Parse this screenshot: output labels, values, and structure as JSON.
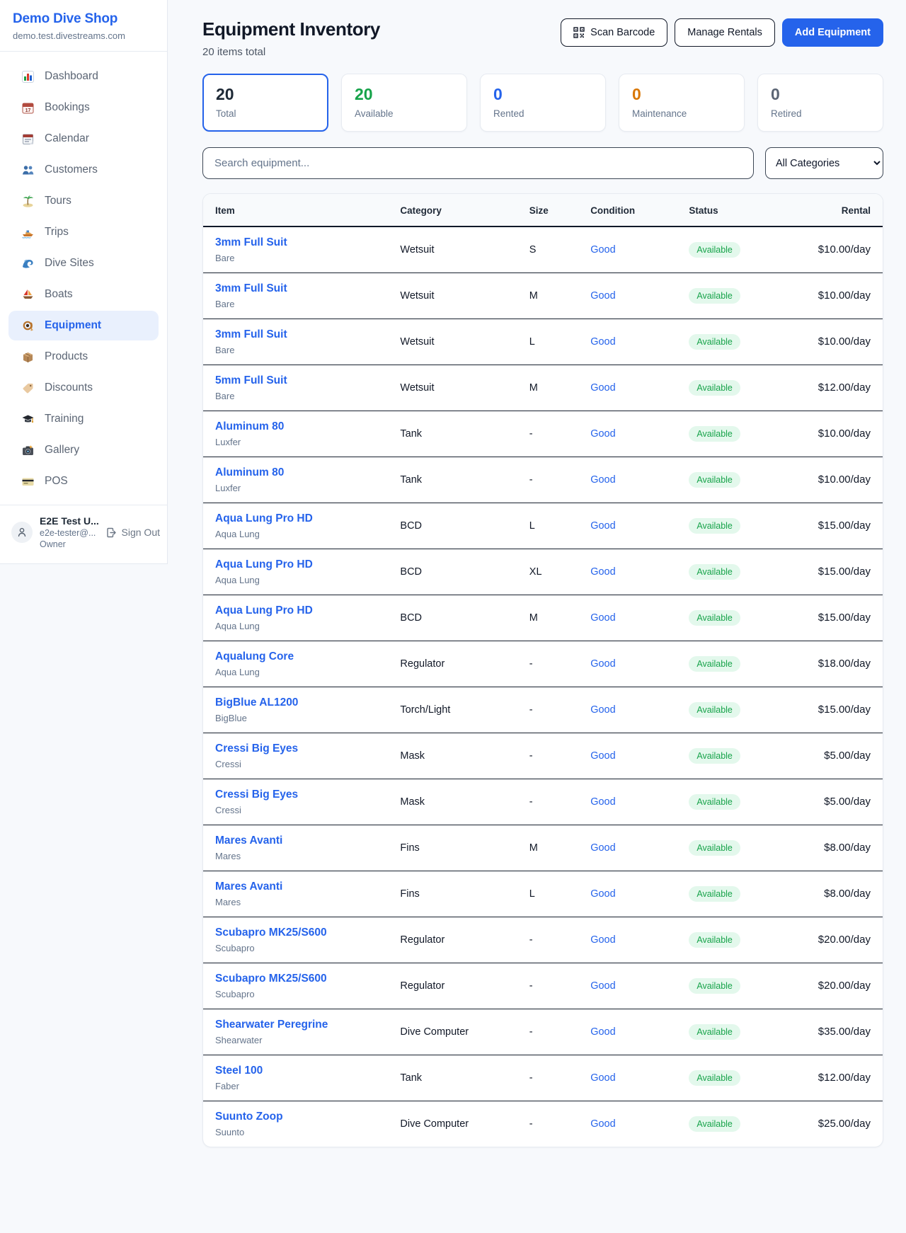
{
  "colors": {
    "accent_blue": "#2563eb",
    "green": "#16a34a",
    "orange": "#d97706",
    "gray": "#64748b",
    "dark": "#0f172a",
    "available_pill_bg": "#e3f8ec",
    "active_nav_bg": "#e9f0fd"
  },
  "sidebar": {
    "brand": "Demo Dive Shop",
    "domain": "demo.test.divestreams.com",
    "items": [
      {
        "label": "Dashboard",
        "icon": "dashboard",
        "active": false
      },
      {
        "label": "Bookings",
        "icon": "bookings",
        "active": false
      },
      {
        "label": "Calendar",
        "icon": "calendar",
        "active": false
      },
      {
        "label": "Customers",
        "icon": "customers",
        "active": false
      },
      {
        "label": "Tours",
        "icon": "tours",
        "active": false
      },
      {
        "label": "Trips",
        "icon": "trips",
        "active": false
      },
      {
        "label": "Dive Sites",
        "icon": "dive-sites",
        "active": false
      },
      {
        "label": "Boats",
        "icon": "boats",
        "active": false
      },
      {
        "label": "Equipment",
        "icon": "equipment",
        "active": true
      },
      {
        "label": "Products",
        "icon": "products",
        "active": false
      },
      {
        "label": "Discounts",
        "icon": "discounts",
        "active": false
      },
      {
        "label": "Training",
        "icon": "training",
        "active": false
      },
      {
        "label": "Gallery",
        "icon": "gallery",
        "active": false
      },
      {
        "label": "POS",
        "icon": "pos",
        "active": false
      }
    ],
    "user": {
      "name": "E2E Test U...",
      "email": "e2e-tester@...",
      "role": "Owner",
      "signout_label": "Sign Out"
    }
  },
  "header": {
    "title": "Equipment Inventory",
    "subtitle": "20 items total",
    "scan_label": "Scan Barcode",
    "manage_label": "Manage Rentals",
    "add_label": "Add Equipment"
  },
  "stats": [
    {
      "value": "20",
      "label": "Total",
      "color": "#1e2936",
      "selected": true
    },
    {
      "value": "20",
      "label": "Available",
      "color": "#16a34a",
      "selected": false
    },
    {
      "value": "0",
      "label": "Rented",
      "color": "#2563eb",
      "selected": false
    },
    {
      "value": "0",
      "label": "Maintenance",
      "color": "#d97706",
      "selected": false
    },
    {
      "value": "0",
      "label": "Retired",
      "color": "#5b6574",
      "selected": false
    }
  ],
  "search": {
    "placeholder": "Search equipment...",
    "category_selected": "All Categories"
  },
  "table": {
    "headers": [
      "Item",
      "Category",
      "Size",
      "Condition",
      "Status",
      "Rental"
    ],
    "rows": [
      {
        "name": "3mm Full Suit",
        "brand": "Bare",
        "category": "Wetsuit",
        "size": "S",
        "condition": "Good",
        "status": "Available",
        "rental": "$10.00/day"
      },
      {
        "name": "3mm Full Suit",
        "brand": "Bare",
        "category": "Wetsuit",
        "size": "M",
        "condition": "Good",
        "status": "Available",
        "rental": "$10.00/day"
      },
      {
        "name": "3mm Full Suit",
        "brand": "Bare",
        "category": "Wetsuit",
        "size": "L",
        "condition": "Good",
        "status": "Available",
        "rental": "$10.00/day"
      },
      {
        "name": "5mm Full Suit",
        "brand": "Bare",
        "category": "Wetsuit",
        "size": "M",
        "condition": "Good",
        "status": "Available",
        "rental": "$12.00/day"
      },
      {
        "name": "Aluminum 80",
        "brand": "Luxfer",
        "category": "Tank",
        "size": "-",
        "condition": "Good",
        "status": "Available",
        "rental": "$10.00/day"
      },
      {
        "name": "Aluminum 80",
        "brand": "Luxfer",
        "category": "Tank",
        "size": "-",
        "condition": "Good",
        "status": "Available",
        "rental": "$10.00/day"
      },
      {
        "name": "Aqua Lung Pro HD",
        "brand": "Aqua Lung",
        "category": "BCD",
        "size": "L",
        "condition": "Good",
        "status": "Available",
        "rental": "$15.00/day"
      },
      {
        "name": "Aqua Lung Pro HD",
        "brand": "Aqua Lung",
        "category": "BCD",
        "size": "XL",
        "condition": "Good",
        "status": "Available",
        "rental": "$15.00/day"
      },
      {
        "name": "Aqua Lung Pro HD",
        "brand": "Aqua Lung",
        "category": "BCD",
        "size": "M",
        "condition": "Good",
        "status": "Available",
        "rental": "$15.00/day"
      },
      {
        "name": "Aqualung Core",
        "brand": "Aqua Lung",
        "category": "Regulator",
        "size": "-",
        "condition": "Good",
        "status": "Available",
        "rental": "$18.00/day"
      },
      {
        "name": "BigBlue AL1200",
        "brand": "BigBlue",
        "category": "Torch/Light",
        "size": "-",
        "condition": "Good",
        "status": "Available",
        "rental": "$15.00/day"
      },
      {
        "name": "Cressi Big Eyes",
        "brand": "Cressi",
        "category": "Mask",
        "size": "-",
        "condition": "Good",
        "status": "Available",
        "rental": "$5.00/day"
      },
      {
        "name": "Cressi Big Eyes",
        "brand": "Cressi",
        "category": "Mask",
        "size": "-",
        "condition": "Good",
        "status": "Available",
        "rental": "$5.00/day"
      },
      {
        "name": "Mares Avanti",
        "brand": "Mares",
        "category": "Fins",
        "size": "M",
        "condition": "Good",
        "status": "Available",
        "rental": "$8.00/day"
      },
      {
        "name": "Mares Avanti",
        "brand": "Mares",
        "category": "Fins",
        "size": "L",
        "condition": "Good",
        "status": "Available",
        "rental": "$8.00/day"
      },
      {
        "name": "Scubapro MK25/S600",
        "brand": "Scubapro",
        "category": "Regulator",
        "size": "-",
        "condition": "Good",
        "status": "Available",
        "rental": "$20.00/day"
      },
      {
        "name": "Scubapro MK25/S600",
        "brand": "Scubapro",
        "category": "Regulator",
        "size": "-",
        "condition": "Good",
        "status": "Available",
        "rental": "$20.00/day"
      },
      {
        "name": "Shearwater Peregrine",
        "brand": "Shearwater",
        "category": "Dive Computer",
        "size": "-",
        "condition": "Good",
        "status": "Available",
        "rental": "$35.00/day"
      },
      {
        "name": "Steel 100",
        "brand": "Faber",
        "category": "Tank",
        "size": "-",
        "condition": "Good",
        "status": "Available",
        "rental": "$12.00/day"
      },
      {
        "name": "Suunto Zoop",
        "brand": "Suunto",
        "category": "Dive Computer",
        "size": "-",
        "condition": "Good",
        "status": "Available",
        "rental": "$25.00/day"
      }
    ]
  }
}
